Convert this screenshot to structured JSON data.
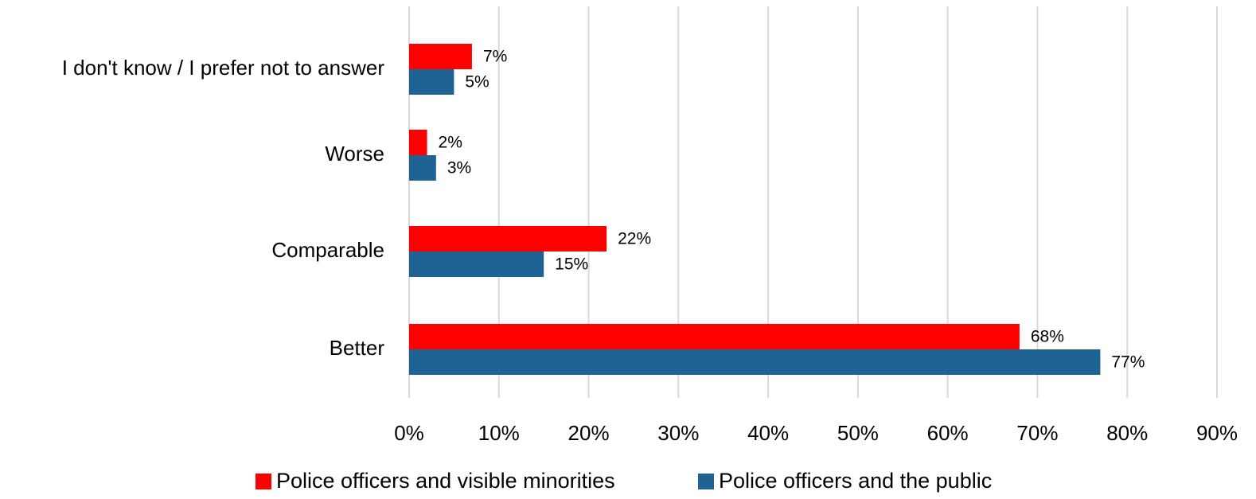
{
  "chart_data": {
    "type": "bar",
    "orientation": "horizontal",
    "categories": [
      "I don't know / I prefer not to answer",
      "Worse",
      "Comparable",
      "Better"
    ],
    "series": [
      {
        "name": "Police officers and visible minorities",
        "color": "#ff0000",
        "values": [
          7,
          2,
          22,
          68
        ],
        "labels": [
          "7%",
          "2%",
          "22%",
          "68%"
        ]
      },
      {
        "name": "Police officers and the public",
        "color": "#1f6394",
        "values": [
          5,
          3,
          15,
          77
        ],
        "labels": [
          "5%",
          "3%",
          "15%",
          "77%"
        ]
      }
    ],
    "x_ticks": [
      "0%",
      "10%",
      "20%",
      "30%",
      "40%",
      "50%",
      "60%",
      "70%",
      "80%",
      "90%"
    ],
    "xlim": [
      0,
      90
    ],
    "xlabel": "",
    "ylabel": "",
    "grid": "vertical",
    "legend_position": "bottom"
  }
}
